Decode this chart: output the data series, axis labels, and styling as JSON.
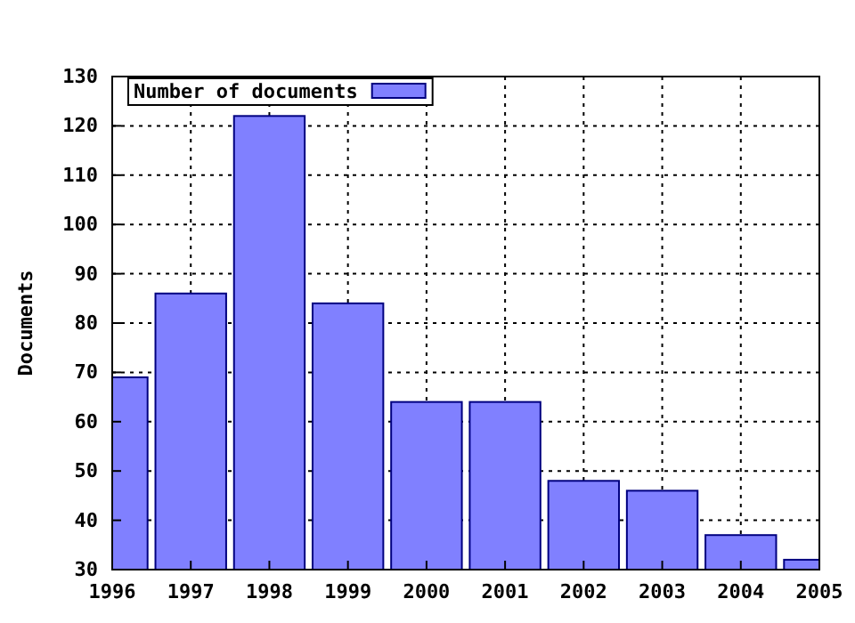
{
  "chart_data": {
    "type": "bar",
    "ylabel": "Documents",
    "x": [
      1996,
      1997,
      1998,
      1999,
      2000,
      2001,
      2002,
      2003,
      2004,
      2005
    ],
    "series": [
      {
        "name": "Number of documents",
        "color": "#8080ff",
        "values": [
          69,
          86,
          122,
          84,
          64,
          64,
          48,
          46,
          37,
          32
        ]
      }
    ],
    "xlim": [
      1996,
      2005
    ],
    "xticks": [
      1996,
      1997,
      1998,
      1999,
      2000,
      2001,
      2002,
      2003,
      2004,
      2005
    ],
    "ylim": [
      30,
      130
    ],
    "yticks": [
      30,
      40,
      50,
      60,
      70,
      80,
      90,
      100,
      110,
      120,
      130
    ],
    "grid": true,
    "legend": "top left"
  }
}
